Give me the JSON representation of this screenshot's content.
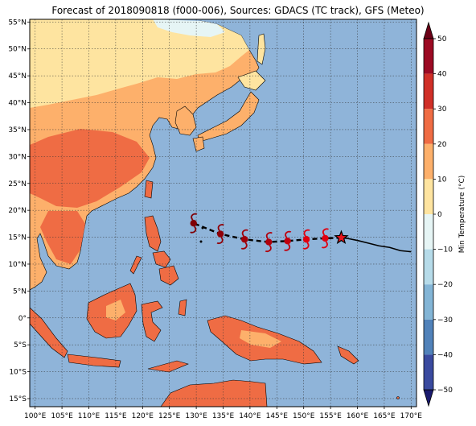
{
  "title": "Forecast of 2018090818 (f000-006), Sources: GDACS (TC track), GFS (Meteo)",
  "map": {
    "lon_range": [
      99,
      171
    ],
    "lat_range": [
      -16.5,
      55.5
    ],
    "lon_ticks": [
      "100°E",
      "105°E",
      "110°E",
      "115°E",
      "120°E",
      "125°E",
      "130°E",
      "135°E",
      "140°E",
      "145°E",
      "150°E",
      "155°E",
      "160°E",
      "165°E",
      "170°E"
    ],
    "lat_ticks": [
      "55°N",
      "50°N",
      "45°N",
      "40°N",
      "35°N",
      "30°N",
      "25°N",
      "20°N",
      "15°N",
      "10°N",
      "5°N",
      "0°",
      "5°S",
      "10°S",
      "15°S"
    ],
    "grid": true,
    "ocean_color": "#8fb4d9"
  },
  "colorbar": {
    "label": "Min Temperature (°C)",
    "ticks": [
      "50",
      "40",
      "30",
      "20",
      "10",
      "0",
      "−10",
      "−20",
      "−30",
      "−40",
      "−50"
    ],
    "colors": [
      "#9c0a23",
      "#d02f27",
      "#ef6c44",
      "#fdb06b",
      "#fee4a0",
      "#e6f5f5",
      "#b6dbe9",
      "#83b5d6",
      "#5182ba",
      "#3a4a9f"
    ],
    "extend_top_color": "#6b0016",
    "extend_bottom_color": "#1a1a6e"
  },
  "track": {
    "past_points": [
      [
        170,
        12.3
      ],
      [
        168,
        12.5
      ],
      [
        166,
        13.1
      ],
      [
        164,
        13.4
      ],
      [
        162,
        13.9
      ],
      [
        160,
        14.4
      ],
      [
        158,
        14.8
      ]
    ],
    "current_position": [
      157,
      14.9
    ],
    "forecast_points": [
      [
        154,
        14.8
      ],
      [
        150.5,
        14.6
      ],
      [
        147,
        14.3
      ],
      [
        143.5,
        14.1
      ],
      [
        139,
        14.6
      ],
      [
        134.5,
        15.6
      ],
      [
        129.5,
        17.6
      ]
    ],
    "forecast_intensity_colors": [
      "#e00010",
      "#e00010",
      "#c0000e",
      "#b0000c",
      "#a0000a",
      "#900008",
      "#800006"
    ]
  }
}
